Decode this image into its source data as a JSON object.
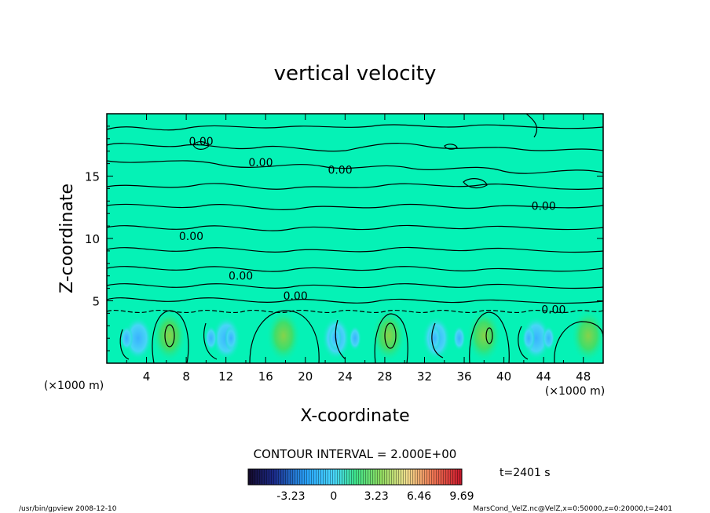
{
  "chart_data": {
    "type": "contour",
    "title": "vertical velocity",
    "xlabel": "X-coordinate",
    "ylabel": "Z-coordinate",
    "x_unit_note": "(×1000 m)",
    "z_unit_note": "(×1000 m)",
    "xlim": [
      0,
      50
    ],
    "ylim": [
      0,
      20
    ],
    "x_ticks": [
      4,
      8,
      12,
      16,
      20,
      24,
      28,
      32,
      36,
      40,
      44,
      48
    ],
    "y_ticks": [
      5,
      10,
      15
    ],
    "contour_labels": [
      {
        "text": "0.00",
        "x": 9.5,
        "z": 17.8
      },
      {
        "text": "0.00",
        "x": 15.5,
        "z": 16.1
      },
      {
        "text": "0.00",
        "x": 23.5,
        "z": 15.5
      },
      {
        "text": "0.00",
        "x": 44.0,
        "z": 12.6
      },
      {
        "text": "0.00",
        "x": 8.5,
        "z": 10.2
      },
      {
        "text": "0.00",
        "x": 13.5,
        "z": 7.0
      },
      {
        "text": "0.00",
        "x": 19.0,
        "z": 5.4
      },
      {
        "text": "0.00",
        "x": 45.0,
        "z": 4.3
      }
    ],
    "updrafts": [
      {
        "x": 6.3,
        "z": 2.2
      },
      {
        "x": 17.8,
        "z": 2.2
      },
      {
        "x": 28.4,
        "z": 2.2
      },
      {
        "x": 38.0,
        "z": 2.2
      },
      {
        "x": 48.5,
        "z": 2.0
      }
    ],
    "contour_interval_text": "CONTOUR INTERVAL = 2.000E+00",
    "colorbar": {
      "ticks": [
        "-3.23",
        "0",
        "3.23",
        "6.46",
        "9.69"
      ],
      "range": [
        -6.46,
        9.69
      ]
    },
    "time_label": "t=2401 s"
  },
  "footer": {
    "left": "/usr/bin/gpview  2008-12-10",
    "right": "MarsCond_VelZ.nc@VelZ,x=0:50000,z=0:20000,t=2401"
  }
}
